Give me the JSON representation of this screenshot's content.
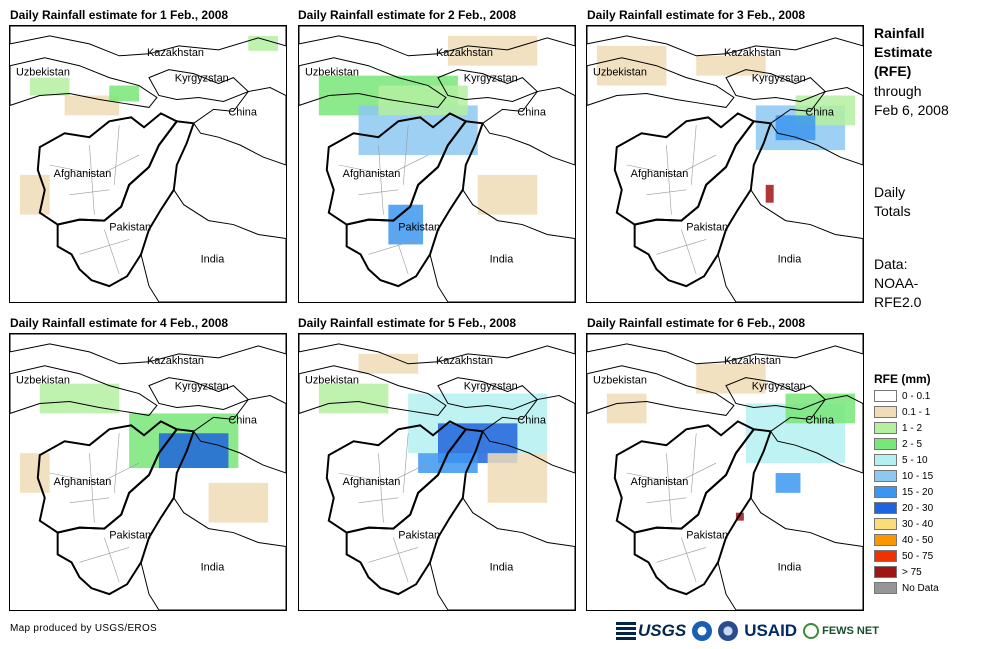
{
  "panels": [
    {
      "title": "Daily Rainfall estimate for 1 Feb., 2008"
    },
    {
      "title": "Daily Rainfall estimate for 2 Feb., 2008"
    },
    {
      "title": "Daily Rainfall estimate for 3 Feb., 2008"
    },
    {
      "title": "Daily Rainfall estimate for 4 Feb., 2008"
    },
    {
      "title": "Daily Rainfall estimate for 5 Feb., 2008"
    },
    {
      "title": "Daily Rainfall estimate for 6 Feb., 2008"
    }
  ],
  "map_labels": {
    "kazakhstan": "Kazakhstan",
    "uzbekistan": "Uzbekistan",
    "kyrgyzstan": "Kyrgyzstan",
    "china": "China",
    "afghanistan": "Afghanistan",
    "pakistan": "Pakistan",
    "india": "India"
  },
  "sidebar": {
    "title_line1": "Rainfall",
    "title_line2": "Estimate",
    "title_line3": "(RFE)",
    "through": "through",
    "date": "Feb 6, 2008",
    "daily": "Daily",
    "totals": "Totals",
    "data_label": "Data:",
    "data_source1": "NOAA-",
    "data_source2": "RFE2.0"
  },
  "legend": {
    "title": "RFE (mm)",
    "items": [
      {
        "label": "0 - 0.1",
        "color": "#ffffff"
      },
      {
        "label": "0.1 - 1",
        "color": "#f0dcb6"
      },
      {
        "label": "1 - 2",
        "color": "#b4f0a0"
      },
      {
        "label": "2 - 5",
        "color": "#78e678"
      },
      {
        "label": "5 - 10",
        "color": "#b4f0f0"
      },
      {
        "label": "10 - 15",
        "color": "#8cc8f0"
      },
      {
        "label": "15 - 20",
        "color": "#3c96f0"
      },
      {
        "label": "20 - 30",
        "color": "#1e64dc"
      },
      {
        "label": "30 - 40",
        "color": "#fadc78"
      },
      {
        "label": "40 - 50",
        "color": "#fa9600"
      },
      {
        "label": "50 - 75",
        "color": "#f03200"
      },
      {
        "label": "> 75",
        "color": "#a01414"
      },
      {
        "label": "No Data",
        "color": "#969696"
      }
    ]
  },
  "footer": {
    "credit": "Map produced by USGS/EROS",
    "logo_usgs": "USGS",
    "logo_usaid": "USAID",
    "logo_fews": "FEWS NET"
  }
}
